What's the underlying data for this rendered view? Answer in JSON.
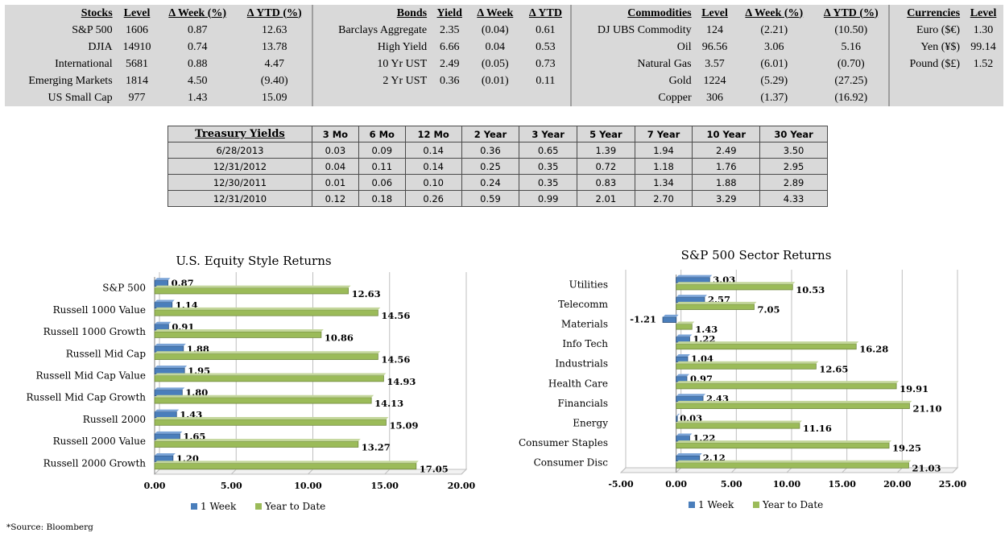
{
  "markets": {
    "stocks": {
      "headers": [
        "Stocks",
        "Level",
        "Δ Week (%)",
        "Δ YTD (%)"
      ],
      "rows": [
        [
          "S&P 500",
          "1606",
          "0.87",
          "12.63"
        ],
        [
          "DJIA",
          "14910",
          "0.74",
          "13.78"
        ],
        [
          "International",
          "5681",
          "0.88",
          "4.47"
        ],
        [
          "Emerging Markets",
          "1814",
          "4.50",
          "(9.40)"
        ],
        [
          "US Small Cap",
          "977",
          "1.43",
          "15.09"
        ]
      ]
    },
    "bonds": {
      "headers": [
        "Bonds",
        "Yield",
        "Δ Week",
        "Δ YTD"
      ],
      "rows": [
        [
          "Barclays Aggregate",
          "2.35",
          "(0.04)",
          "0.61"
        ],
        [
          "High Yield",
          "6.66",
          "0.04",
          "0.53"
        ],
        [
          "10 Yr UST",
          "2.49",
          "(0.05)",
          "0.73"
        ],
        [
          "2 Yr UST",
          "0.36",
          "(0.01)",
          "0.11"
        ]
      ]
    },
    "commodities": {
      "headers": [
        "Commodities",
        "Level",
        "Δ Week (%)",
        "Δ YTD (%)"
      ],
      "rows": [
        [
          "DJ UBS Commodity",
          "124",
          "(2.21)",
          "(10.50)"
        ],
        [
          "Oil",
          "96.56",
          "3.06",
          "5.16"
        ],
        [
          "Natural Gas",
          "3.57",
          "(6.01)",
          "(0.70)"
        ],
        [
          "Gold",
          "1224",
          "(5.29)",
          "(27.25)"
        ],
        [
          "Copper",
          "306",
          "(1.37)",
          "(16.92)"
        ]
      ]
    },
    "currencies": {
      "headers": [
        "Currencies",
        "Level"
      ],
      "rows": [
        [
          "Euro ($€)",
          "1.30"
        ],
        [
          "Yen (¥$)",
          "99.14"
        ],
        [
          "Pound ($£)",
          "1.52"
        ]
      ]
    }
  },
  "treasury": {
    "headers": [
      "Treasury Yields",
      "3 Mo",
      "6 Mo",
      "12 Mo",
      "2 Year",
      "3 Year",
      "5 Year",
      "7 Year",
      "10 Year",
      "30 Year"
    ],
    "rows": [
      [
        "6/28/2013",
        "0.03",
        "0.09",
        "0.14",
        "0.36",
        "0.65",
        "1.39",
        "1.94",
        "2.49",
        "3.50"
      ],
      [
        "12/31/2012",
        "0.04",
        "0.11",
        "0.14",
        "0.25",
        "0.35",
        "0.72",
        "1.18",
        "1.76",
        "2.95"
      ],
      [
        "12/30/2011",
        "0.01",
        "0.06",
        "0.10",
        "0.24",
        "0.35",
        "0.83",
        "1.34",
        "1.88",
        "2.89"
      ],
      [
        "12/31/2010",
        "0.12",
        "0.18",
        "0.26",
        "0.59",
        "0.99",
        "2.01",
        "2.70",
        "3.29",
        "4.33"
      ]
    ]
  },
  "colors": {
    "week": "#4a7ebb",
    "ytd": "#9bbb59",
    "table_bg": "#d9d9d9"
  },
  "chart_data": [
    {
      "type": "bar",
      "orientation": "horizontal",
      "title": "U.S. Equity Style Returns",
      "categories": [
        "S&P 500",
        "Russell 1000 Value",
        "Russell 1000 Growth",
        "Russell Mid Cap",
        "Russell Mid Cap Value",
        "Russell Mid Cap Growth",
        "Russell 2000",
        "Russell 2000 Value",
        "Russell 2000 Growth"
      ],
      "series": [
        {
          "name": "1 Week",
          "values": [
            0.87,
            1.14,
            0.91,
            1.88,
            1.95,
            1.8,
            1.43,
            1.65,
            1.2
          ]
        },
        {
          "name": "Year to Date",
          "values": [
            12.63,
            14.56,
            10.86,
            14.56,
            14.93,
            14.13,
            15.09,
            13.27,
            17.05
          ]
        }
      ],
      "xlim": [
        0,
        20
      ],
      "ticks": [
        0,
        5,
        10,
        15,
        20
      ],
      "tick_labels": [
        "0.00",
        "5.00",
        "10.00",
        "15.00",
        "20.00"
      ],
      "legend": "bottom"
    },
    {
      "type": "bar",
      "orientation": "horizontal",
      "title": "S&P 500 Sector Returns",
      "categories": [
        "Utilities",
        "Telecomm",
        "Materials",
        "Info Tech",
        "Industrials",
        "Health Care",
        "Financials",
        "Energy",
        "Consumer Staples",
        "Consumer Disc"
      ],
      "series": [
        {
          "name": "1 Week",
          "values": [
            3.03,
            2.57,
            -1.21,
            1.22,
            1.04,
            0.97,
            2.43,
            0.03,
            1.22,
            2.12
          ]
        },
        {
          "name": "Year to Date",
          "values": [
            10.53,
            7.05,
            1.43,
            16.28,
            12.65,
            19.91,
            21.1,
            11.16,
            19.25,
            21.03
          ]
        }
      ],
      "xlim": [
        -5,
        25
      ],
      "ticks": [
        -5,
        0,
        5,
        10,
        15,
        20,
        25
      ],
      "tick_labels": [
        "-5.00",
        "0.00",
        "5.00",
        "10.00",
        "15.00",
        "20.00",
        "25.00"
      ],
      "legend": "bottom"
    }
  ],
  "source": "*Source: Bloomberg"
}
